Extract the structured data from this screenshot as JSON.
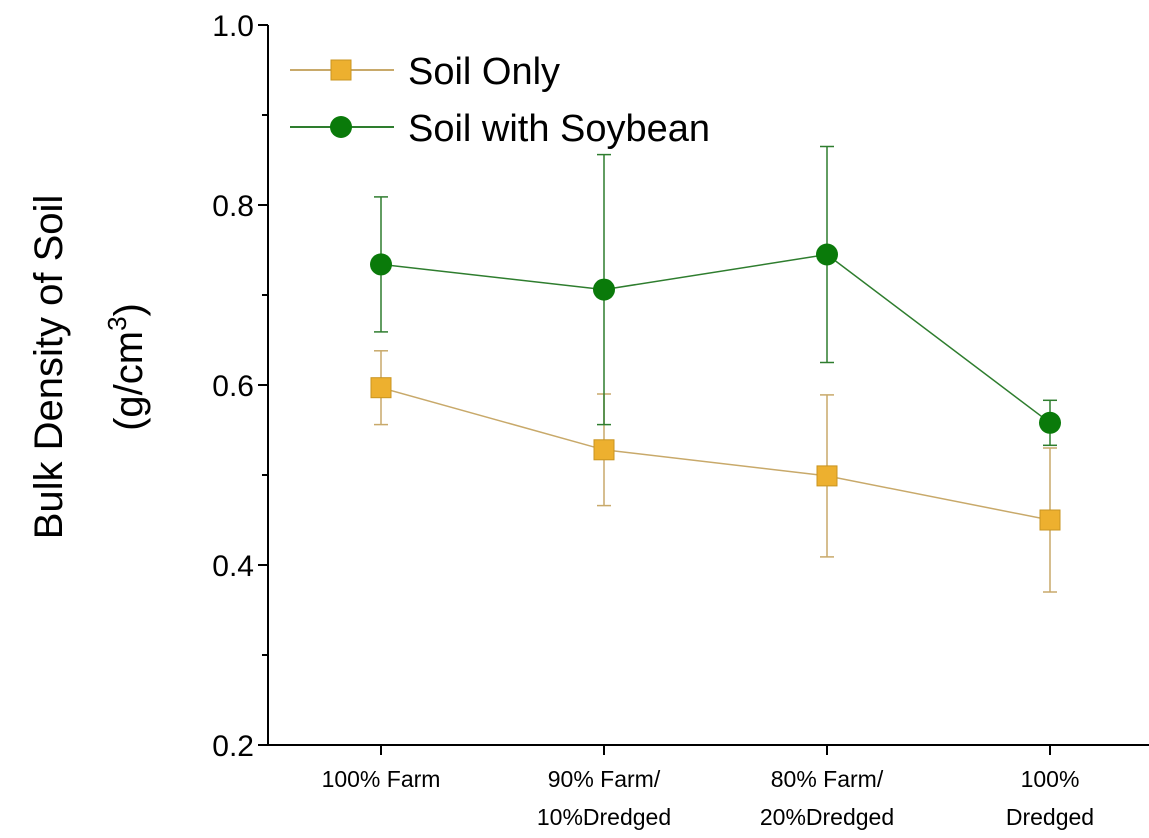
{
  "chart_data": {
    "type": "line",
    "categories": [
      [
        "100% Farm"
      ],
      [
        "90% Farm/",
        "10%Dredged"
      ],
      [
        "80% Farm/",
        "20%Dredged"
      ],
      [
        "100%",
        "Dredged"
      ]
    ],
    "ylabel": {
      "line1": "Bulk Density of Soil",
      "line2_prefix": "(g/cm",
      "line2_sup": "3",
      "line2_suffix": ")"
    },
    "ylim": [
      0.2,
      1.0
    ],
    "yticks": [
      0.2,
      0.4,
      0.6,
      0.8,
      1.0
    ],
    "ytick_labels": [
      "0.2",
      "0.4",
      "0.6",
      "0.8",
      "1.0"
    ],
    "grid": false,
    "legend_position": "top-left",
    "series": [
      {
        "name": "Soil Only",
        "marker": "square",
        "color": "#EDB02F",
        "line_color": "#C8A96A",
        "values": [
          0.597,
          0.528,
          0.499,
          0.45
        ],
        "error": [
          0.041,
          0.062,
          0.09,
          0.08
        ]
      },
      {
        "name": "Soil with Soybean",
        "marker": "circle",
        "color": "#0A7A0A",
        "line_color": "#2E7D2E",
        "values": [
          0.734,
          0.706,
          0.745,
          0.558
        ],
        "error": [
          0.075,
          0.15,
          0.12,
          0.025
        ]
      }
    ]
  }
}
